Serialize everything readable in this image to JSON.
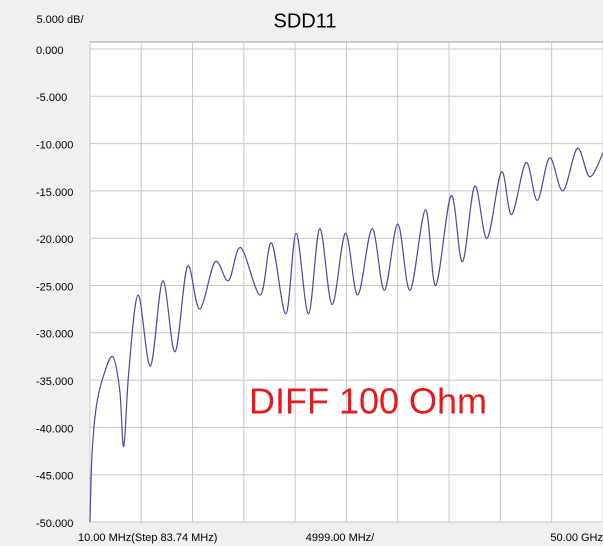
{
  "chart_data": {
    "type": "line",
    "title": "SDD11",
    "scale_label": "5.000 dB/",
    "annotation": "DIFF 100 Ohm",
    "x_start_label": "10.00 MHz(Step 83.74 MHz)",
    "x_center_label": "4999.00 MHz/",
    "x_end_label": "50.00 GHz",
    "xlim": [
      0.01,
      50
    ],
    "ylim": [
      -50,
      0
    ],
    "yticks": [
      {
        "value": 0,
        "label": "0.000"
      },
      {
        "value": -5,
        "label": "-5.000"
      },
      {
        "value": -10,
        "label": "-10.000"
      },
      {
        "value": -15,
        "label": "-15.000"
      },
      {
        "value": -20,
        "label": "-20.000"
      },
      {
        "value": -25,
        "label": "-25.000"
      },
      {
        "value": -30,
        "label": "-30.000"
      },
      {
        "value": -35,
        "label": "-35.000"
      },
      {
        "value": -40,
        "label": "-40.000"
      },
      {
        "value": -45,
        "label": "-45.000"
      },
      {
        "value": -50,
        "label": "-50.000"
      }
    ],
    "xticks": [
      0.01,
      5,
      10,
      15,
      20,
      25,
      30,
      35,
      40,
      45,
      50
    ],
    "grid": true,
    "x": [
      0.01,
      0.2,
      0.6,
      1.2,
      2.2,
      2.9,
      3.3,
      3.8,
      4.7,
      5.9,
      7.1,
      8.3,
      9.5,
      10.7,
      12.2,
      13.5,
      14.7,
      16.6,
      17.7,
      19.1,
      20.1,
      21.3,
      22.4,
      23.6,
      24.9,
      26.1,
      27.5,
      28.7,
      30.0,
      31.2,
      32.7,
      33.7,
      35.2,
      36.3,
      37.5,
      38.7,
      40.1,
      41.1,
      42.5,
      43.6,
      44.8,
      46.1,
      47.5,
      48.7,
      50
    ],
    "series": [
      {
        "color": "#4a4aa0",
        "values": [
          -50,
          -43,
          -38,
          -35,
          -32.5,
          -36,
          -42,
          -34,
          -26,
          -33.5,
          -24.5,
          -32,
          -23,
          -27.5,
          -22.5,
          -24.5,
          -21,
          -26,
          -20.5,
          -28,
          -19.5,
          -28,
          -19,
          -27,
          -19.5,
          -26,
          -19,
          -25.5,
          -18.5,
          -25.5,
          -17,
          -25,
          -15.5,
          -22.5,
          -14.5,
          -20,
          -13,
          -17.5,
          -12,
          -16,
          -11.5,
          -15,
          -10.5,
          -13.5,
          -11
        ]
      }
    ]
  }
}
